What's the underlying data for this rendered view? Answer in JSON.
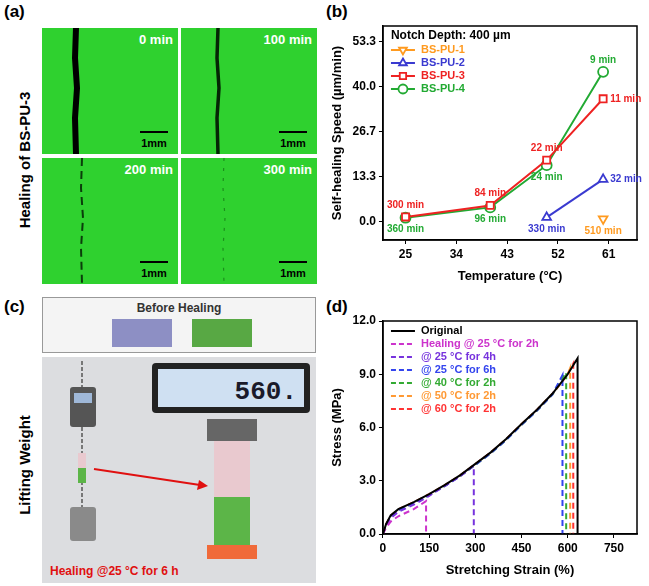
{
  "panel_a": {
    "label": "(a)",
    "title": "Healing of BS-PU-3",
    "images": [
      {
        "time": "0 min",
        "scale": "1mm"
      },
      {
        "time": "100 min",
        "scale": "1mm"
      },
      {
        "time": "200 min",
        "scale": "1mm"
      },
      {
        "time": "300 min",
        "scale": "1mm"
      }
    ]
  },
  "panel_c": {
    "label": "(c)",
    "title": "Lifting Weight",
    "before_label": "Before Healing",
    "display": "560.",
    "caption": "Healing @25 °C for 6 h"
  },
  "chart_data": [
    {
      "panel": "(b)",
      "type": "line",
      "x_label": "Temperature (°C)",
      "y_label": "Self-healing Speed (µm/min)",
      "legend_title": "Notch Depth: 400 µm",
      "legend": "top-left",
      "grid": false,
      "xlim": [
        21,
        66
      ],
      "xticks": [
        25,
        34,
        43,
        52,
        61
      ],
      "ylim": [
        -5.5,
        58
      ],
      "yticks": [
        {
          "value": 0,
          "label": "0.0"
        },
        {
          "value": 13.33,
          "label": "13.3"
        },
        {
          "value": 26.67,
          "label": "26.7"
        },
        {
          "value": 40,
          "label": "40.0"
        },
        {
          "value": 53.33,
          "label": "53.3"
        }
      ],
      "series": [
        {
          "name": "BS-PU-1",
          "color": "#ff9a1f",
          "marker": "triangle-down",
          "line_style": "solid",
          "x": [
            60
          ],
          "values": [
            0.78
          ],
          "point_labels": [
            "510 min"
          ]
        },
        {
          "name": "BS-PU-2",
          "color": "#3a3ad0",
          "marker": "triangle",
          "line_style": "solid",
          "x": [
            50,
            60
          ],
          "values": [
            1.21,
            12.5
          ],
          "point_labels": [
            "330 min",
            "32 min"
          ]
        },
        {
          "name": "BS-PU-3",
          "color": "#ee2222",
          "marker": "square",
          "line_style": "solid",
          "x": [
            25,
            40,
            50,
            60
          ],
          "values": [
            1.33,
            4.76,
            18.2,
            36.4
          ],
          "point_labels": [
            "300 min",
            "84 min",
            "22 min",
            "11 min"
          ]
        },
        {
          "name": "BS-PU-4",
          "color": "#22aa33",
          "marker": "circle",
          "line_style": "solid",
          "x": [
            25,
            40,
            50,
            60
          ],
          "values": [
            1.11,
            4.17,
            16.7,
            44.4
          ],
          "point_labels": [
            "360 min",
            "96 min",
            "24 min",
            "9 min"
          ]
        }
      ]
    },
    {
      "panel": "(d)",
      "type": "line",
      "x_label": "Stretching Strain (%)",
      "y_label": "Stress (MPa)",
      "legend": "top-left",
      "grid": false,
      "xlim": [
        0,
        825
      ],
      "xticks": [
        0,
        150,
        300,
        450,
        600,
        750
      ],
      "ylim": [
        0,
        12
      ],
      "yticks": [
        {
          "value": 0,
          "label": "0.0"
        },
        {
          "value": 3,
          "label": "3.0"
        },
        {
          "value": 6,
          "label": "6.0"
        },
        {
          "value": 9,
          "label": "9.0"
        },
        {
          "value": 12,
          "label": "12.0"
        }
      ],
      "series": [
        {
          "name": "Original",
          "color": "#000000",
          "line_style": "solid",
          "x": [
            0,
            10,
            25,
            50,
            100,
            150,
            200,
            250,
            300,
            350,
            400,
            450,
            500,
            550,
            600,
            632,
            632
          ],
          "values": [
            0,
            0.55,
            1.05,
            1.4,
            1.8,
            2.25,
            2.75,
            3.3,
            3.95,
            4.6,
            5.35,
            6.2,
            7.0,
            7.9,
            9.0,
            9.9,
            0
          ]
        },
        {
          "name": "Healing @ 25 °C for 2h",
          "color": "#cc33cc",
          "line_style": "dashed",
          "x": [
            0,
            10,
            25,
            50,
            100,
            140,
            140
          ],
          "values": [
            0,
            0.35,
            0.7,
            1.0,
            1.4,
            1.85,
            0
          ]
        },
        {
          "name": "@ 25 °C for 4h",
          "color": "#7733dd",
          "line_style": "dashed",
          "x": [
            0,
            10,
            25,
            50,
            100,
            150,
            200,
            250,
            295,
            295
          ],
          "values": [
            0,
            0.45,
            0.9,
            1.25,
            1.65,
            2.15,
            2.7,
            3.25,
            3.85,
            0
          ]
        },
        {
          "name": "@ 25 °C for 6h",
          "color": "#3344ee",
          "line_style": "dashed",
          "x": [
            0,
            10,
            25,
            50,
            100,
            150,
            200,
            250,
            300,
            350,
            400,
            450,
            500,
            550,
            583,
            583
          ],
          "values": [
            0,
            0.5,
            1.0,
            1.35,
            1.75,
            2.2,
            2.7,
            3.25,
            3.9,
            4.55,
            5.3,
            6.15,
            6.95,
            7.85,
            8.95,
            0
          ]
        },
        {
          "name": "@ 40 °C for 2h",
          "color": "#33aa33",
          "line_style": "dashed",
          "x": [
            0,
            10,
            25,
            50,
            100,
            150,
            200,
            250,
            300,
            350,
            400,
            450,
            500,
            550,
            595,
            595
          ],
          "values": [
            0,
            0.5,
            1.0,
            1.35,
            1.75,
            2.2,
            2.7,
            3.25,
            3.9,
            4.55,
            5.3,
            6.15,
            6.95,
            7.85,
            9.1,
            0
          ]
        },
        {
          "name": "@ 50 °C for 2h",
          "color": "#ff9933",
          "line_style": "dashed",
          "x": [
            0,
            10,
            25,
            50,
            100,
            150,
            200,
            250,
            300,
            350,
            400,
            450,
            500,
            550,
            600,
            608,
            608
          ],
          "values": [
            0,
            0.52,
            1.02,
            1.38,
            1.78,
            2.23,
            2.73,
            3.28,
            3.93,
            4.58,
            5.33,
            6.18,
            6.98,
            7.88,
            9.0,
            9.35,
            0
          ]
        },
        {
          "name": "@ 60 °C for 2h",
          "color": "#ff3333",
          "line_style": "dashed",
          "x": [
            0,
            10,
            25,
            50,
            100,
            150,
            200,
            250,
            300,
            350,
            400,
            450,
            500,
            550,
            600,
            618,
            618
          ],
          "values": [
            0,
            0.53,
            1.03,
            1.39,
            1.79,
            2.24,
            2.74,
            3.29,
            3.94,
            4.59,
            5.34,
            6.19,
            6.99,
            7.89,
            9.0,
            9.6,
            0
          ]
        }
      ]
    }
  ]
}
